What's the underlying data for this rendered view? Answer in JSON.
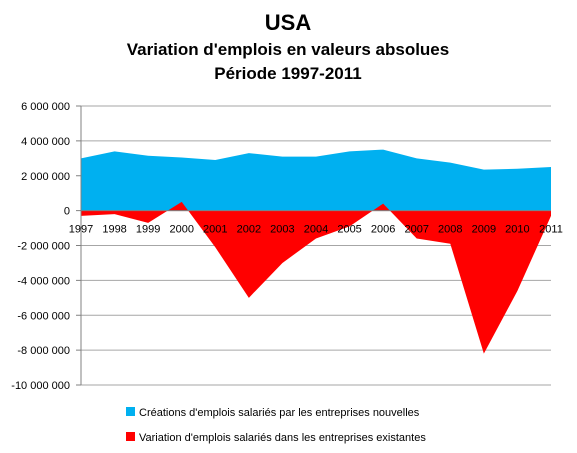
{
  "chart_data": {
    "type": "area",
    "title": "USA",
    "subtitle": [
      "Variation d'emplois en valeurs absolues",
      "Période 1997-2011"
    ],
    "x": [
      "1997",
      "1998",
      "1999",
      "2000",
      "2001",
      "2002",
      "2003",
      "2004",
      "2005",
      "2006",
      "2007",
      "2008",
      "2009",
      "2010",
      "2011"
    ],
    "y_ticks": [
      "6 000 000",
      "4 000 000",
      "2 000 000",
      "0",
      "-2 000 000",
      "-4 000 000",
      "-6 000 000",
      "-8 000 000",
      "-10 000 000"
    ],
    "ylim": [
      -10000000,
      6000000
    ],
    "grid": true,
    "legend_position": "bottom",
    "series": [
      {
        "name": "Créations d'emplois salariés par les entreprises nouvelles",
        "color": "#00b0f0",
        "values": [
          3000000,
          3400000,
          3150000,
          3050000,
          2900000,
          3300000,
          3100000,
          3100000,
          3400000,
          3500000,
          3000000,
          2750000,
          2350000,
          2400000,
          2500000
        ]
      },
      {
        "name": "Variation d'emplois salariés dans les entreprises existantes",
        "color": "#ff0000",
        "values": [
          -300000,
          -200000,
          -700000,
          500000,
          -2100000,
          -5000000,
          -3000000,
          -1600000,
          -900000,
          400000,
          -1600000,
          -1900000,
          -8200000,
          -4600000,
          -300000
        ]
      }
    ]
  }
}
